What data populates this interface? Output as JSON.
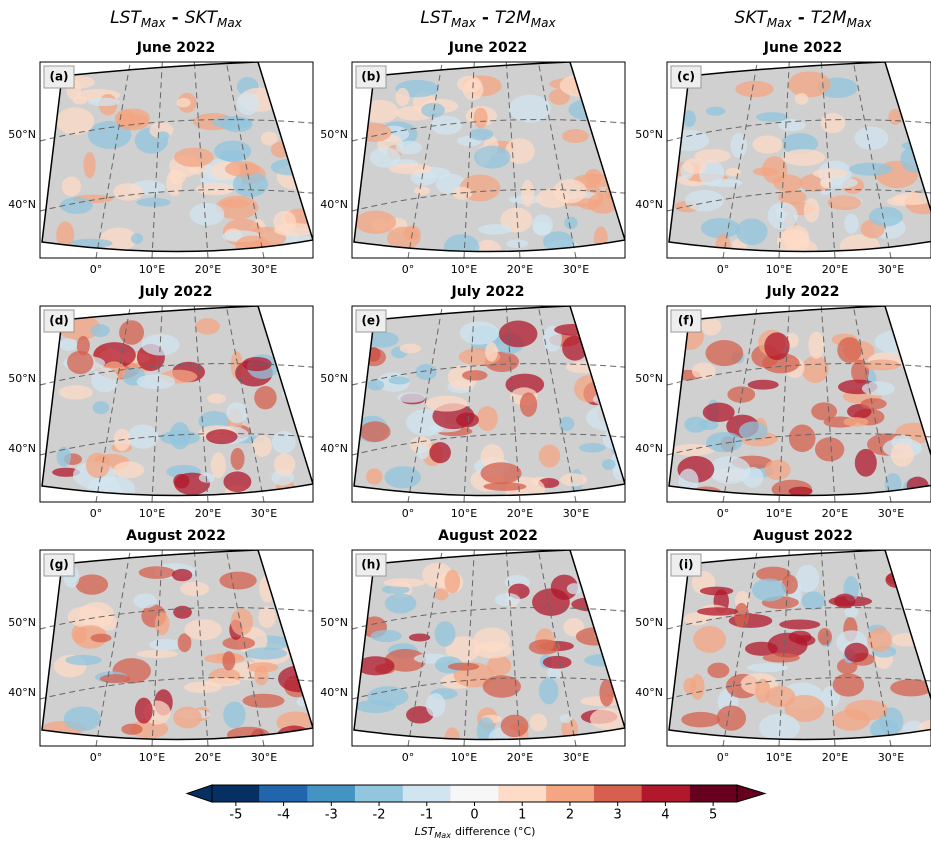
{
  "column_titles": [
    {
      "left": "LST",
      "left_sub": "Max",
      "op": "-",
      "right": "SKT",
      "right_sub": "Max"
    },
    {
      "left": "LST",
      "left_sub": "Max",
      "op": "-",
      "right": "T2M",
      "right_sub": "Max"
    },
    {
      "left": "SKT",
      "left_sub": "Max",
      "op": "-",
      "right": "T2M",
      "right_sub": "Max"
    }
  ],
  "panels": [
    {
      "label": "(a)",
      "title": "June 2022"
    },
    {
      "label": "(b)",
      "title": "June 2022"
    },
    {
      "label": "(c)",
      "title": "June 2022"
    },
    {
      "label": "(d)",
      "title": "July 2022"
    },
    {
      "label": "(e)",
      "title": "July 2022"
    },
    {
      "label": "(f)",
      "title": "July 2022"
    },
    {
      "label": "(g)",
      "title": "August 2022"
    },
    {
      "label": "(h)",
      "title": "August 2022"
    },
    {
      "label": "(i)",
      "title": "August 2022"
    }
  ],
  "latitude_labels": [
    "50°N",
    "40°N"
  ],
  "longitude_labels": [
    "0°",
    "10°E",
    "20°E",
    "30°E"
  ],
  "colorbar": {
    "ticks": [
      -5,
      -4,
      -3,
      -2,
      -1,
      0,
      1,
      2,
      3,
      4,
      5
    ],
    "colors": [
      "#053061",
      "#2166ac",
      "#4393c3",
      "#92c5de",
      "#d1e5f0",
      "#f7f7f7",
      "#fddbc7",
      "#f4a582",
      "#d6604d",
      "#b2182b",
      "#67001f"
    ],
    "extend": "both",
    "label": {
      "main": "LST",
      "sub": "Max",
      "rest": "difference (°C)"
    }
  }
}
